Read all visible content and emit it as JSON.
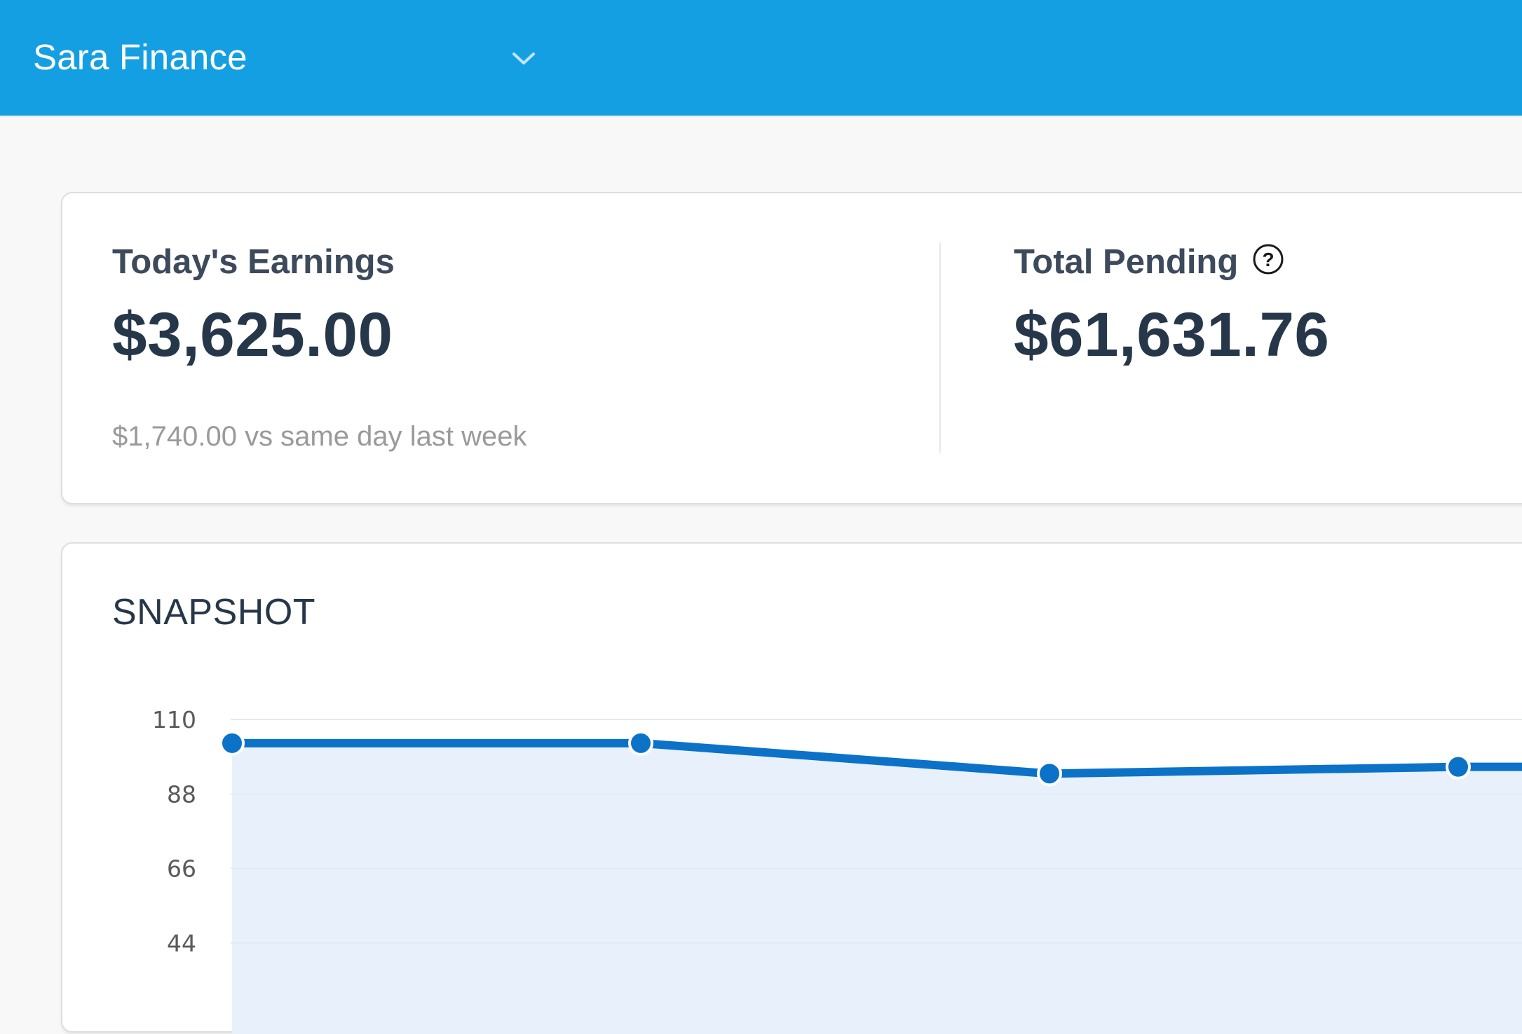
{
  "header": {
    "brand": "Sara Finance",
    "switch_icon": "chevron-down-icon",
    "background": "#159fe3"
  },
  "earnings": {
    "today": {
      "label": "Today's Earnings",
      "value": "$3,625.00",
      "comparison": "$1,740.00 vs same day last week"
    },
    "pending": {
      "label": "Total Pending",
      "value": "$61,631.76",
      "help_icon": "question-circle-icon"
    }
  },
  "snapshot": {
    "title": "SNAPSHOT"
  },
  "chart_data": {
    "type": "area",
    "title": "SNAPSHOT",
    "y_ticks": [
      "110",
      "88",
      "66",
      "44"
    ],
    "y_tick_values": [
      110,
      88,
      66,
      44
    ],
    "values": [
      103,
      103,
      94,
      96,
      96
    ],
    "ylim": [
      44,
      110
    ],
    "grid": true,
    "line_color": "#0b72c8",
    "fill_color": "#e8f1fb"
  }
}
